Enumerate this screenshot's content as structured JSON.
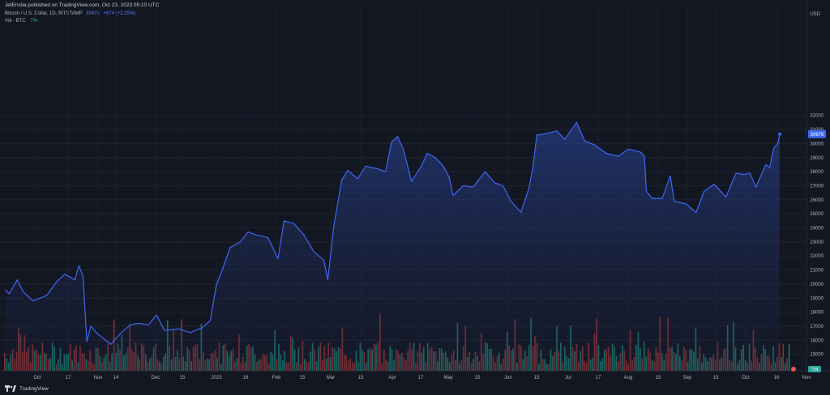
{
  "header": {
    "published": "JetEncila published on TradingView.com, Oct 23, 2023 05:10 UTC",
    "symbol": "Bitcoin / U.S. Dollar, 1D, BITSTAMP",
    "price": "30676",
    "change": "+674 (+2.25%)",
    "vol_label": "Vol · BTC",
    "vol_value": "794"
  },
  "footer": {
    "brand": "TradingView"
  },
  "colors": {
    "line": "#3f67f4",
    "up": "#26a69a",
    "down": "#ef5350",
    "badge": "#3f67f4"
  },
  "chart_data": {
    "type": "area",
    "currency_label": "USD",
    "y_ticks": [
      15000,
      16000,
      17000,
      18000,
      19000,
      20000,
      21000,
      22000,
      23000,
      24000,
      25000,
      26000,
      27000,
      28000,
      29000,
      30000,
      31000,
      32000
    ],
    "ylim": [
      14500,
      33000
    ],
    "last_price_badge": "30676",
    "x_labels": [
      "Oct",
      "17",
      "Nov",
      "14",
      "Dec",
      "15",
      "2023",
      "16",
      "Feb",
      "15",
      "Mar",
      "15",
      "Apr",
      "17",
      "May",
      "15",
      "Jun",
      "15",
      "Jul",
      "17",
      "Aug",
      "15",
      "Sep",
      "15",
      "Oct",
      "16",
      "Nov"
    ],
    "vol_badge": "794",
    "price_series": [
      [
        "2022-09-29",
        19600
      ],
      [
        "2022-10-01",
        19300
      ],
      [
        "2022-10-05",
        20300
      ],
      [
        "2022-10-08",
        19450
      ],
      [
        "2022-10-13",
        18800
      ],
      [
        "2022-10-20",
        19200
      ],
      [
        "2022-10-25",
        20200
      ],
      [
        "2022-10-29",
        20700
      ],
      [
        "2022-11-03",
        20300
      ],
      [
        "2022-11-05",
        21300
      ],
      [
        "2022-11-07",
        20600
      ],
      [
        "2022-11-09",
        15900
      ],
      [
        "2022-11-11",
        17000
      ],
      [
        "2022-11-14",
        16500
      ],
      [
        "2022-11-21",
        15700
      ],
      [
        "2022-11-26",
        16500
      ],
      [
        "2022-12-01",
        17100
      ],
      [
        "2022-12-05",
        17200
      ],
      [
        "2022-12-10",
        17100
      ],
      [
        "2022-12-14",
        17800
      ],
      [
        "2022-12-18",
        16700
      ],
      [
        "2022-12-25",
        16800
      ],
      [
        "2022-12-31",
        16550
      ],
      [
        "2023-01-06",
        16900
      ],
      [
        "2023-01-10",
        17400
      ],
      [
        "2023-01-13",
        19900
      ],
      [
        "2023-01-16",
        21000
      ],
      [
        "2023-01-20",
        22600
      ],
      [
        "2023-01-25",
        23000
      ],
      [
        "2023-01-29",
        23700
      ],
      [
        "2023-02-02",
        23500
      ],
      [
        "2023-02-08",
        23300
      ],
      [
        "2023-02-13",
        21800
      ],
      [
        "2023-02-16",
        24500
      ],
      [
        "2023-02-21",
        24300
      ],
      [
        "2023-02-26",
        23500
      ],
      [
        "2023-03-03",
        22300
      ],
      [
        "2023-03-08",
        21700
      ],
      [
        "2023-03-10",
        20300
      ],
      [
        "2023-03-13",
        24100
      ],
      [
        "2023-03-17",
        27400
      ],
      [
        "2023-03-20",
        28100
      ],
      [
        "2023-03-25",
        27500
      ],
      [
        "2023-03-29",
        28400
      ],
      [
        "2023-04-04",
        28200
      ],
      [
        "2023-04-08",
        28000
      ],
      [
        "2023-04-11",
        30100
      ],
      [
        "2023-04-14",
        30500
      ],
      [
        "2023-04-17",
        29600
      ],
      [
        "2023-04-21",
        27300
      ],
      [
        "2023-04-26",
        28400
      ],
      [
        "2023-04-29",
        29300
      ],
      [
        "2023-05-03",
        29000
      ],
      [
        "2023-05-07",
        28400
      ],
      [
        "2023-05-10",
        27600
      ],
      [
        "2023-05-12",
        26300
      ],
      [
        "2023-05-17",
        27000
      ],
      [
        "2023-05-22",
        26900
      ],
      [
        "2023-05-28",
        28000
      ],
      [
        "2023-06-02",
        27200
      ],
      [
        "2023-06-06",
        27000
      ],
      [
        "2023-06-10",
        25900
      ],
      [
        "2023-06-15",
        25100
      ],
      [
        "2023-06-19",
        26800
      ],
      [
        "2023-06-21",
        28300
      ],
      [
        "2023-06-23",
        30600
      ],
      [
        "2023-06-27",
        30700
      ],
      [
        "2023-07-03",
        30900
      ],
      [
        "2023-07-07",
        30300
      ],
      [
        "2023-07-13",
        31500
      ],
      [
        "2023-07-17",
        30200
      ],
      [
        "2023-07-22",
        29900
      ],
      [
        "2023-07-28",
        29300
      ],
      [
        "2023-08-03",
        29100
      ],
      [
        "2023-08-08",
        29600
      ],
      [
        "2023-08-14",
        29400
      ],
      [
        "2023-08-16",
        29100
      ],
      [
        "2023-08-17",
        26600
      ],
      [
        "2023-08-20",
        26100
      ],
      [
        "2023-08-25",
        26100
      ],
      [
        "2023-08-29",
        27700
      ],
      [
        "2023-08-31",
        25900
      ],
      [
        "2023-09-06",
        25700
      ],
      [
        "2023-09-11",
        25100
      ],
      [
        "2023-09-15",
        26600
      ],
      [
        "2023-09-20",
        27100
      ],
      [
        "2023-09-26",
        26200
      ],
      [
        "2023-10-01",
        27900
      ],
      [
        "2023-10-05",
        27800
      ],
      [
        "2023-10-08",
        27900
      ],
      [
        "2023-10-11",
        26900
      ],
      [
        "2023-10-16",
        28500
      ],
      [
        "2023-10-18",
        28300
      ],
      [
        "2023-10-20",
        29700
      ],
      [
        "2023-10-22",
        30000
      ],
      [
        "2023-10-23",
        30676
      ]
    ]
  }
}
